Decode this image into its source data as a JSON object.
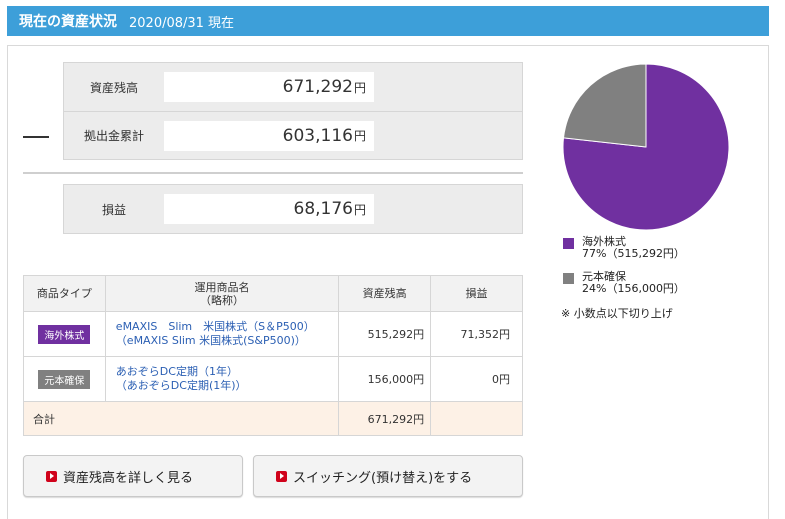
{
  "header": {
    "title": "現在の資産状況",
    "date": "2020/08/31 現在"
  },
  "summary": {
    "balance_label": "資産残高",
    "balance_value": "671,292",
    "contrib_label": "拠出金累計",
    "contrib_value": "603,116",
    "pl_label": "損益",
    "pl_value": "68,176",
    "unit": "円"
  },
  "table": {
    "headers": {
      "type": "商品タイプ",
      "name": "運用商品名",
      "name_sub": "（略称）",
      "balance": "資産残高",
      "pl": "損益"
    },
    "rows": [
      {
        "type": "海外株式",
        "type_color": "#7030a0",
        "name": "eMAXIS　Slim　米国株式（S＆P500）",
        "short": "（eMAXIS Slim 米国株式(S&P500)）",
        "balance": "515,292円",
        "pl": "71,352円"
      },
      {
        "type": "元本確保",
        "type_color": "#808080",
        "name": "あおぞらDC定期（1年）",
        "short": "（あおぞらDC定期(1年)）",
        "balance": "156,000円",
        "pl": "0円"
      }
    ],
    "total": {
      "label": "合計",
      "balance": "671,292円"
    }
  },
  "buttons": {
    "detail": "資産残高を詳しく見る",
    "switch": "スイッチング(預け替え)をする"
  },
  "chart_data": {
    "type": "pie",
    "categories": [
      "海外株式",
      "元本確保"
    ],
    "values": [
      515292,
      156000
    ],
    "colors": [
      "#7030a0",
      "#808080"
    ]
  },
  "legend": [
    {
      "name": "海外株式",
      "detail": "77%（515,292円）",
      "color": "#7030a0"
    },
    {
      "name": "元本確保",
      "detail": "24%（156,000円）",
      "color": "#808080"
    }
  ],
  "note": "※ 小数点以下切り上げ"
}
